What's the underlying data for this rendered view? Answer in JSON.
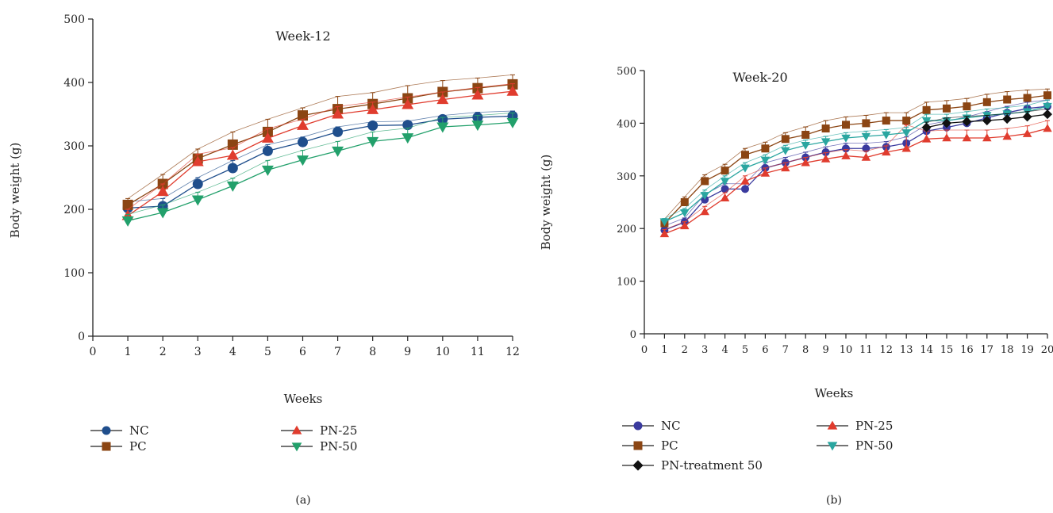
{
  "chart_data": [
    {
      "type": "line",
      "title": "Week-12",
      "xlabel": "Weeks",
      "ylabel": "Body weight (g)",
      "xlim": [
        0,
        12
      ],
      "ylim": [
        0,
        500
      ],
      "xticks": [
        0,
        1,
        2,
        3,
        4,
        5,
        6,
        7,
        8,
        9,
        10,
        11,
        12
      ],
      "yticks": [
        0,
        100,
        200,
        300,
        400,
        500
      ],
      "grid": false,
      "legend_position": "bottom",
      "caption": "(a)",
      "x": [
        1,
        2,
        3,
        4,
        5,
        6,
        7,
        8,
        9,
        10,
        11,
        12
      ],
      "series": [
        {
          "name": "NC",
          "color": "#1f4e8c",
          "marker": "circle",
          "values": [
            202,
            205,
            240,
            265,
            292,
            306,
            322,
            332,
            333,
            342,
            345,
            347
          ],
          "errors": [
            10,
            12,
            10,
            12,
            10,
            8,
            8,
            6,
            6,
            6,
            8,
            8
          ]
        },
        {
          "name": "PC",
          "color": "#8b4513",
          "marker": "square",
          "values": [
            207,
            240,
            280,
            302,
            322,
            348,
            358,
            366,
            375,
            385,
            391,
            397
          ],
          "errors": [
            10,
            15,
            15,
            20,
            20,
            12,
            20,
            18,
            20,
            18,
            16,
            15
          ]
        },
        {
          "name": "PN-25",
          "color": "#e03c2e",
          "marker": "triangle-up",
          "values": [
            190,
            228,
            275,
            285,
            312,
            332,
            350,
            357,
            365,
            373,
            380,
            386
          ],
          "errors": [
            10,
            12,
            12,
            12,
            15,
            10,
            12,
            12,
            12,
            12,
            12,
            12
          ]
        },
        {
          "name": "PN-50",
          "color": "#22a06b",
          "marker": "triangle-down",
          "values": [
            182,
            195,
            215,
            237,
            262,
            278,
            292,
            307,
            313,
            330,
            333,
            337
          ],
          "errors": [
            10,
            12,
            12,
            12,
            15,
            15,
            15,
            15,
            15,
            15,
            15,
            15
          ]
        }
      ]
    },
    {
      "type": "line",
      "title": "Week-20",
      "xlabel": "Weeks",
      "ylabel": "Body weight (g)",
      "xlim": [
        0,
        20
      ],
      "ylim": [
        0,
        500
      ],
      "xticks": [
        0,
        1,
        2,
        3,
        4,
        5,
        6,
        7,
        8,
        9,
        10,
        11,
        12,
        13,
        14,
        15,
        16,
        17,
        18,
        19,
        20
      ],
      "yticks": [
        0,
        100,
        200,
        300,
        400,
        500
      ],
      "grid": false,
      "legend_position": "bottom",
      "caption": "(b)",
      "x": [
        1,
        2,
        3,
        4,
        5,
        6,
        7,
        8,
        9,
        10,
        11,
        12,
        13,
        14,
        15,
        16,
        17,
        18,
        19,
        20
      ],
      "series": [
        {
          "name": "NC",
          "color": "#3a3a9e",
          "marker": "circle",
          "values": [
            197,
            212,
            255,
            275,
            275,
            315,
            325,
            335,
            345,
            352,
            352,
            355,
            362,
            385,
            392,
            400,
            410,
            420,
            428,
            432
          ],
          "errors": [
            8,
            8,
            10,
            10,
            10,
            10,
            10,
            10,
            10,
            10,
            10,
            10,
            12,
            12,
            12,
            12,
            12,
            12,
            12,
            12
          ]
        },
        {
          "name": "PC",
          "color": "#8b4513",
          "marker": "square",
          "values": [
            210,
            250,
            290,
            310,
            340,
            352,
            370,
            378,
            390,
            397,
            400,
            405,
            405,
            425,
            428,
            432,
            440,
            445,
            448,
            453
          ],
          "errors": [
            8,
            10,
            12,
            12,
            12,
            12,
            12,
            15,
            15,
            15,
            15,
            15,
            15,
            15,
            15,
            15,
            15,
            15,
            15,
            12
          ]
        },
        {
          "name": "PN-25",
          "color": "#e03c2e",
          "marker": "triangle-up",
          "values": [
            190,
            205,
            232,
            258,
            290,
            305,
            315,
            325,
            332,
            338,
            335,
            345,
            352,
            370,
            372,
            372,
            372,
            375,
            380,
            390
          ],
          "errors": [
            8,
            8,
            10,
            10,
            10,
            10,
            10,
            10,
            12,
            12,
            12,
            12,
            45,
            15,
            15,
            15,
            15,
            15,
            15,
            15
          ]
        },
        {
          "name": "PN-50",
          "color": "#2aa6a0",
          "marker": "triangle-down",
          "values": [
            213,
            230,
            263,
            290,
            315,
            330,
            348,
            358,
            365,
            372,
            375,
            378,
            382,
            405,
            405,
            410,
            415,
            418,
            422,
            432
          ],
          "errors": [
            6,
            8,
            10,
            10,
            10,
            10,
            10,
            10,
            10,
            10,
            10,
            10,
            10,
            12,
            12,
            12,
            12,
            12,
            12,
            12
          ]
        },
        {
          "name": "PN-treatment 50",
          "color": "#111111",
          "marker": "diamond",
          "values": [
            null,
            null,
            null,
            null,
            null,
            null,
            null,
            null,
            null,
            null,
            null,
            null,
            null,
            392,
            400,
            403,
            405,
            408,
            412,
            417
          ],
          "errors": [
            null,
            null,
            null,
            null,
            null,
            null,
            null,
            null,
            null,
            null,
            null,
            null,
            null,
            10,
            10,
            10,
            10,
            10,
            10,
            10
          ]
        }
      ]
    }
  ]
}
